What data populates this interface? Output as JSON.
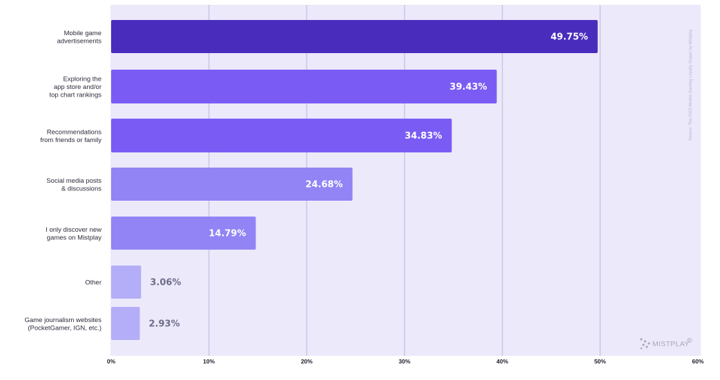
{
  "chart_data": {
    "type": "bar",
    "orientation": "horizontal",
    "categories": [
      [
        "Mobile game",
        "advertisements"
      ],
      [
        "Exploring the",
        "app store and/or",
        "top chart rankings"
      ],
      [
        "Recommendations",
        "from friends or family"
      ],
      [
        "Social media posts",
        "& discussions"
      ],
      [
        "I only discover new",
        "games on Mistplay"
      ],
      [
        "Other"
      ],
      [
        "Game journalism websites",
        "(PocketGamer, IGN, etc.)"
      ]
    ],
    "values": [
      49.75,
      39.43,
      34.83,
      24.68,
      14.79,
      3.06,
      2.93
    ],
    "value_labels": [
      "49.75%",
      "39.43%",
      "34.83%",
      "24.68%",
      "14.79%",
      "3.06%",
      "2.93%"
    ],
    "bar_colors": [
      "#4a2cbd",
      "#7a5cf5",
      "#7a5cf5",
      "#9284f5",
      "#9284f5",
      "#b3aef7",
      "#b3aef7"
    ],
    "xlim": [
      0,
      60
    ],
    "xticks": [
      0,
      10,
      20,
      30,
      40,
      50,
      60
    ],
    "xtick_labels": [
      "0%",
      "10%",
      "20%",
      "30%",
      "40%",
      "50%",
      "60%"
    ],
    "grid": true,
    "title": "",
    "xlabel": "",
    "ylabel": ""
  },
  "colors": {
    "plot_background": "#ece9fb",
    "gridline": "#c9c5e6",
    "inside_label": "#ffffff",
    "outside_label": "#6e6e8a"
  },
  "source_note": "Source: The 2023 Mobile Gaming Loyalty Report by Mistplay",
  "brand": {
    "name": "MISTPLAY",
    "mark": "®",
    "icon": "mistplay-dots-logo"
  }
}
